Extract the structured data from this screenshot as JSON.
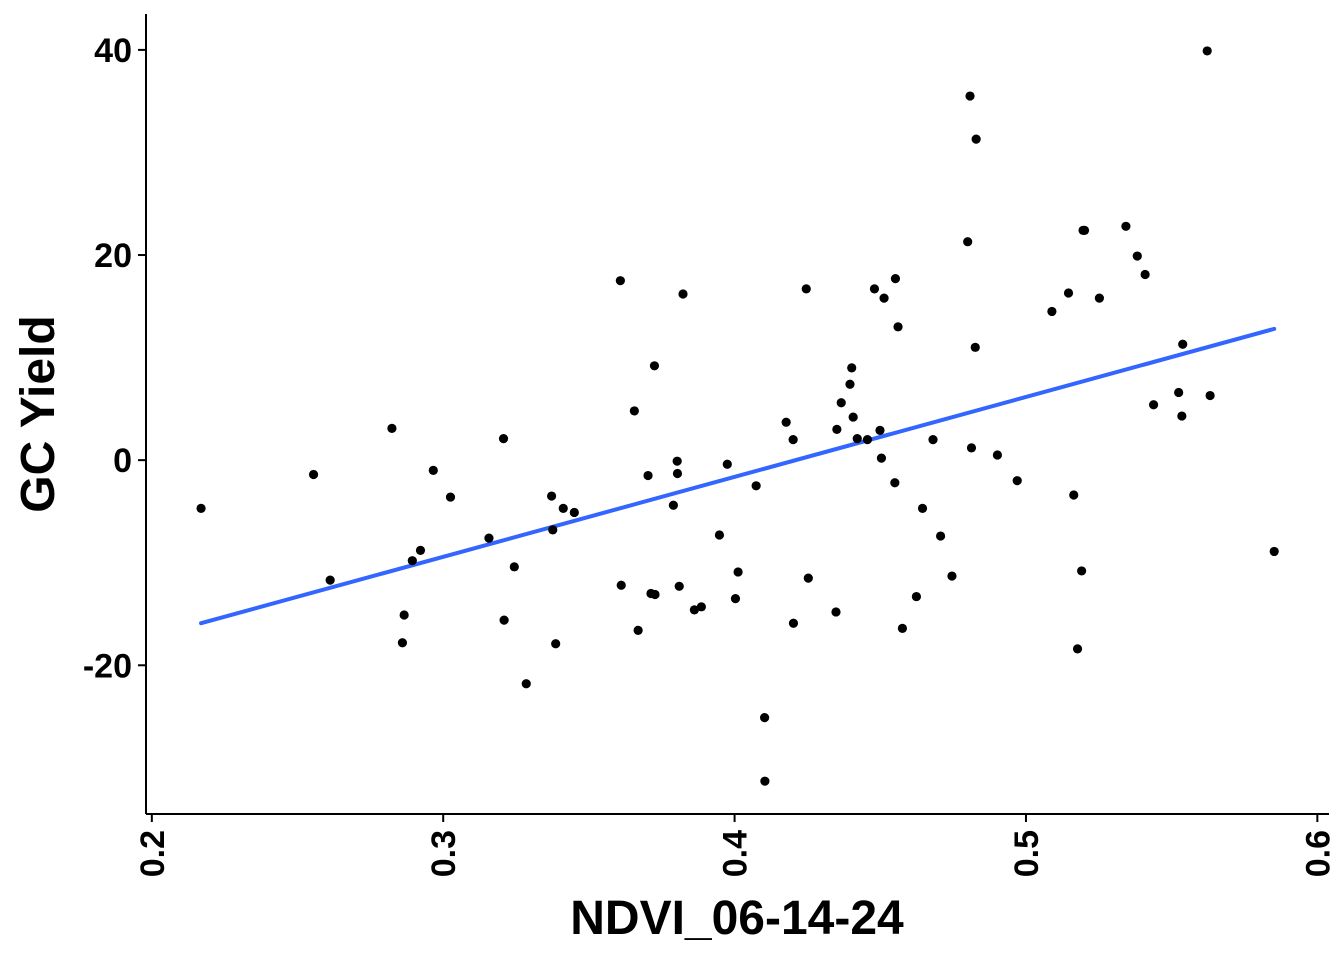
{
  "chart_data": {
    "type": "scatter",
    "title": "",
    "xlabel": "NDVI_06-14-24",
    "ylabel": "GC Yield",
    "xlim": [
      0.198,
      0.604
    ],
    "ylim": [
      -34.5,
      43.5
    ],
    "x_ticks": [
      0.2,
      0.3,
      0.4,
      0.5,
      0.6
    ],
    "x_tick_labels": [
      "0.2",
      "0.3",
      "0.4",
      "0.5",
      "0.6"
    ],
    "y_ticks": [
      -20,
      0,
      20,
      40
    ],
    "y_tick_labels": [
      "-20",
      "0",
      "20",
      "40"
    ],
    "grid": false,
    "legend": "none",
    "colors": {
      "points": "#000000",
      "fit_line": "#3366ff",
      "axis": "#000000"
    },
    "fit_line": {
      "x": [
        0.2169,
        0.5852
      ],
      "y": [
        -15.9,
        12.8
      ]
    },
    "points": [
      [
        0.2169,
        -4.7
      ],
      [
        0.2555,
        -1.4
      ],
      [
        0.2612,
        -11.7
      ],
      [
        0.2824,
        3.1
      ],
      [
        0.286,
        -17.8
      ],
      [
        0.2866,
        -15.1
      ],
      [
        0.2894,
        -9.8
      ],
      [
        0.2922,
        -8.8
      ],
      [
        0.2966,
        -1.0
      ],
      [
        0.3025,
        -3.6
      ],
      [
        0.3157,
        -7.6
      ],
      [
        0.3207,
        2.1
      ],
      [
        0.3209,
        -15.6
      ],
      [
        0.3244,
        -10.4
      ],
      [
        0.3285,
        -21.8
      ],
      [
        0.3372,
        -3.5
      ],
      [
        0.3376,
        -6.8
      ],
      [
        0.3386,
        -17.9
      ],
      [
        0.3412,
        -4.7
      ],
      [
        0.345,
        -5.1
      ],
      [
        0.3608,
        17.5
      ],
      [
        0.3611,
        -12.2
      ],
      [
        0.3656,
        4.8
      ],
      [
        0.3669,
        -16.6
      ],
      [
        0.3703,
        -1.5
      ],
      [
        0.3713,
        -13.0
      ],
      [
        0.3725,
        9.2
      ],
      [
        0.3727,
        -13.1
      ],
      [
        0.379,
        -4.4
      ],
      [
        0.3803,
        -0.1
      ],
      [
        0.3804,
        -1.3
      ],
      [
        0.381,
        -12.3
      ],
      [
        0.3823,
        16.2
      ],
      [
        0.3862,
        -14.6
      ],
      [
        0.3886,
        -14.3
      ],
      [
        0.3948,
        -7.3
      ],
      [
        0.3975,
        -0.4
      ],
      [
        0.4003,
        -13.5
      ],
      [
        0.4012,
        -10.9
      ],
      [
        0.4074,
        -2.5
      ],
      [
        0.4103,
        -25.1
      ],
      [
        0.4104,
        -31.3
      ],
      [
        0.4177,
        3.7
      ],
      [
        0.4201,
        2.0
      ],
      [
        0.4202,
        -15.9
      ],
      [
        0.4246,
        16.7
      ],
      [
        0.4253,
        -11.5
      ],
      [
        0.4348,
        -14.8
      ],
      [
        0.4351,
        3.0
      ],
      [
        0.4366,
        5.6
      ],
      [
        0.4396,
        7.4
      ],
      [
        0.4402,
        9.0
      ],
      [
        0.4407,
        4.2
      ],
      [
        0.4421,
        2.1
      ],
      [
        0.4456,
        2.0
      ],
      [
        0.448,
        16.7
      ],
      [
        0.4499,
        2.9
      ],
      [
        0.4504,
        0.2
      ],
      [
        0.4513,
        15.8
      ],
      [
        0.455,
        -2.2
      ],
      [
        0.4552,
        17.7
      ],
      [
        0.4561,
        13.0
      ],
      [
        0.4576,
        -16.4
      ],
      [
        0.4624,
        -13.3
      ],
      [
        0.4645,
        -4.7
      ],
      [
        0.4681,
        2.0
      ],
      [
        0.4707,
        -7.4
      ],
      [
        0.4746,
        -11.3
      ],
      [
        0.48,
        21.3
      ],
      [
        0.4808,
        35.5
      ],
      [
        0.4813,
        1.2
      ],
      [
        0.4826,
        11.0
      ],
      [
        0.4829,
        31.3
      ],
      [
        0.4902,
        0.5
      ],
      [
        0.497,
        -2.0
      ],
      [
        0.5089,
        14.5
      ],
      [
        0.5146,
        16.3
      ],
      [
        0.5164,
        -3.4
      ],
      [
        0.5177,
        -18.4
      ],
      [
        0.5191,
        -10.8
      ],
      [
        0.5196,
        22.4
      ],
      [
        0.5201,
        22.4
      ],
      [
        0.5252,
        15.8
      ],
      [
        0.5343,
        22.8
      ],
      [
        0.5382,
        19.9
      ],
      [
        0.5409,
        18.1
      ],
      [
        0.5438,
        5.4
      ],
      [
        0.5524,
        6.6
      ],
      [
        0.5535,
        4.3
      ],
      [
        0.5538,
        11.3
      ],
      [
        0.5622,
        39.9
      ],
      [
        0.5632,
        6.3
      ],
      [
        0.5852,
        -8.9
      ]
    ]
  }
}
